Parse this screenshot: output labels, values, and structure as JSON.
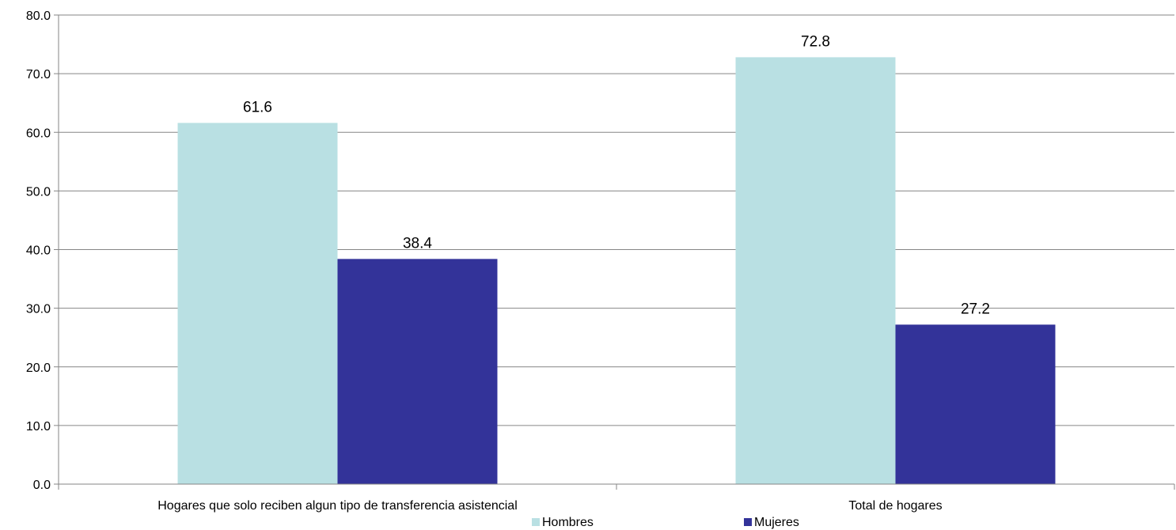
{
  "chart_data": {
    "type": "bar",
    "categories": [
      "Hogares que solo reciben algun tipo de transferencia asistencial",
      "Total de hogares"
    ],
    "series": [
      {
        "name": "Hombres",
        "values": [
          61.6,
          72.8
        ],
        "color": "#b9e0e3"
      },
      {
        "name": "Mujeres",
        "values": [
          38.4,
          27.2
        ],
        "color": "#333399"
      }
    ],
    "ylim": [
      0,
      80
    ],
    "yticks": [
      0.0,
      10.0,
      20.0,
      30.0,
      40.0,
      50.0,
      60.0,
      70.0,
      80.0
    ],
    "ytick_labels": [
      "0.0",
      "10.0",
      "20.0",
      "30.0",
      "40.0",
      "50.0",
      "60.0",
      "70.0",
      "80.0"
    ],
    "data_labels": [
      [
        "61.6",
        "72.8"
      ],
      [
        "38.4",
        "27.2"
      ]
    ],
    "title": "",
    "xlabel": "",
    "ylabel": "",
    "grid": true,
    "legend": "bottom-center"
  }
}
